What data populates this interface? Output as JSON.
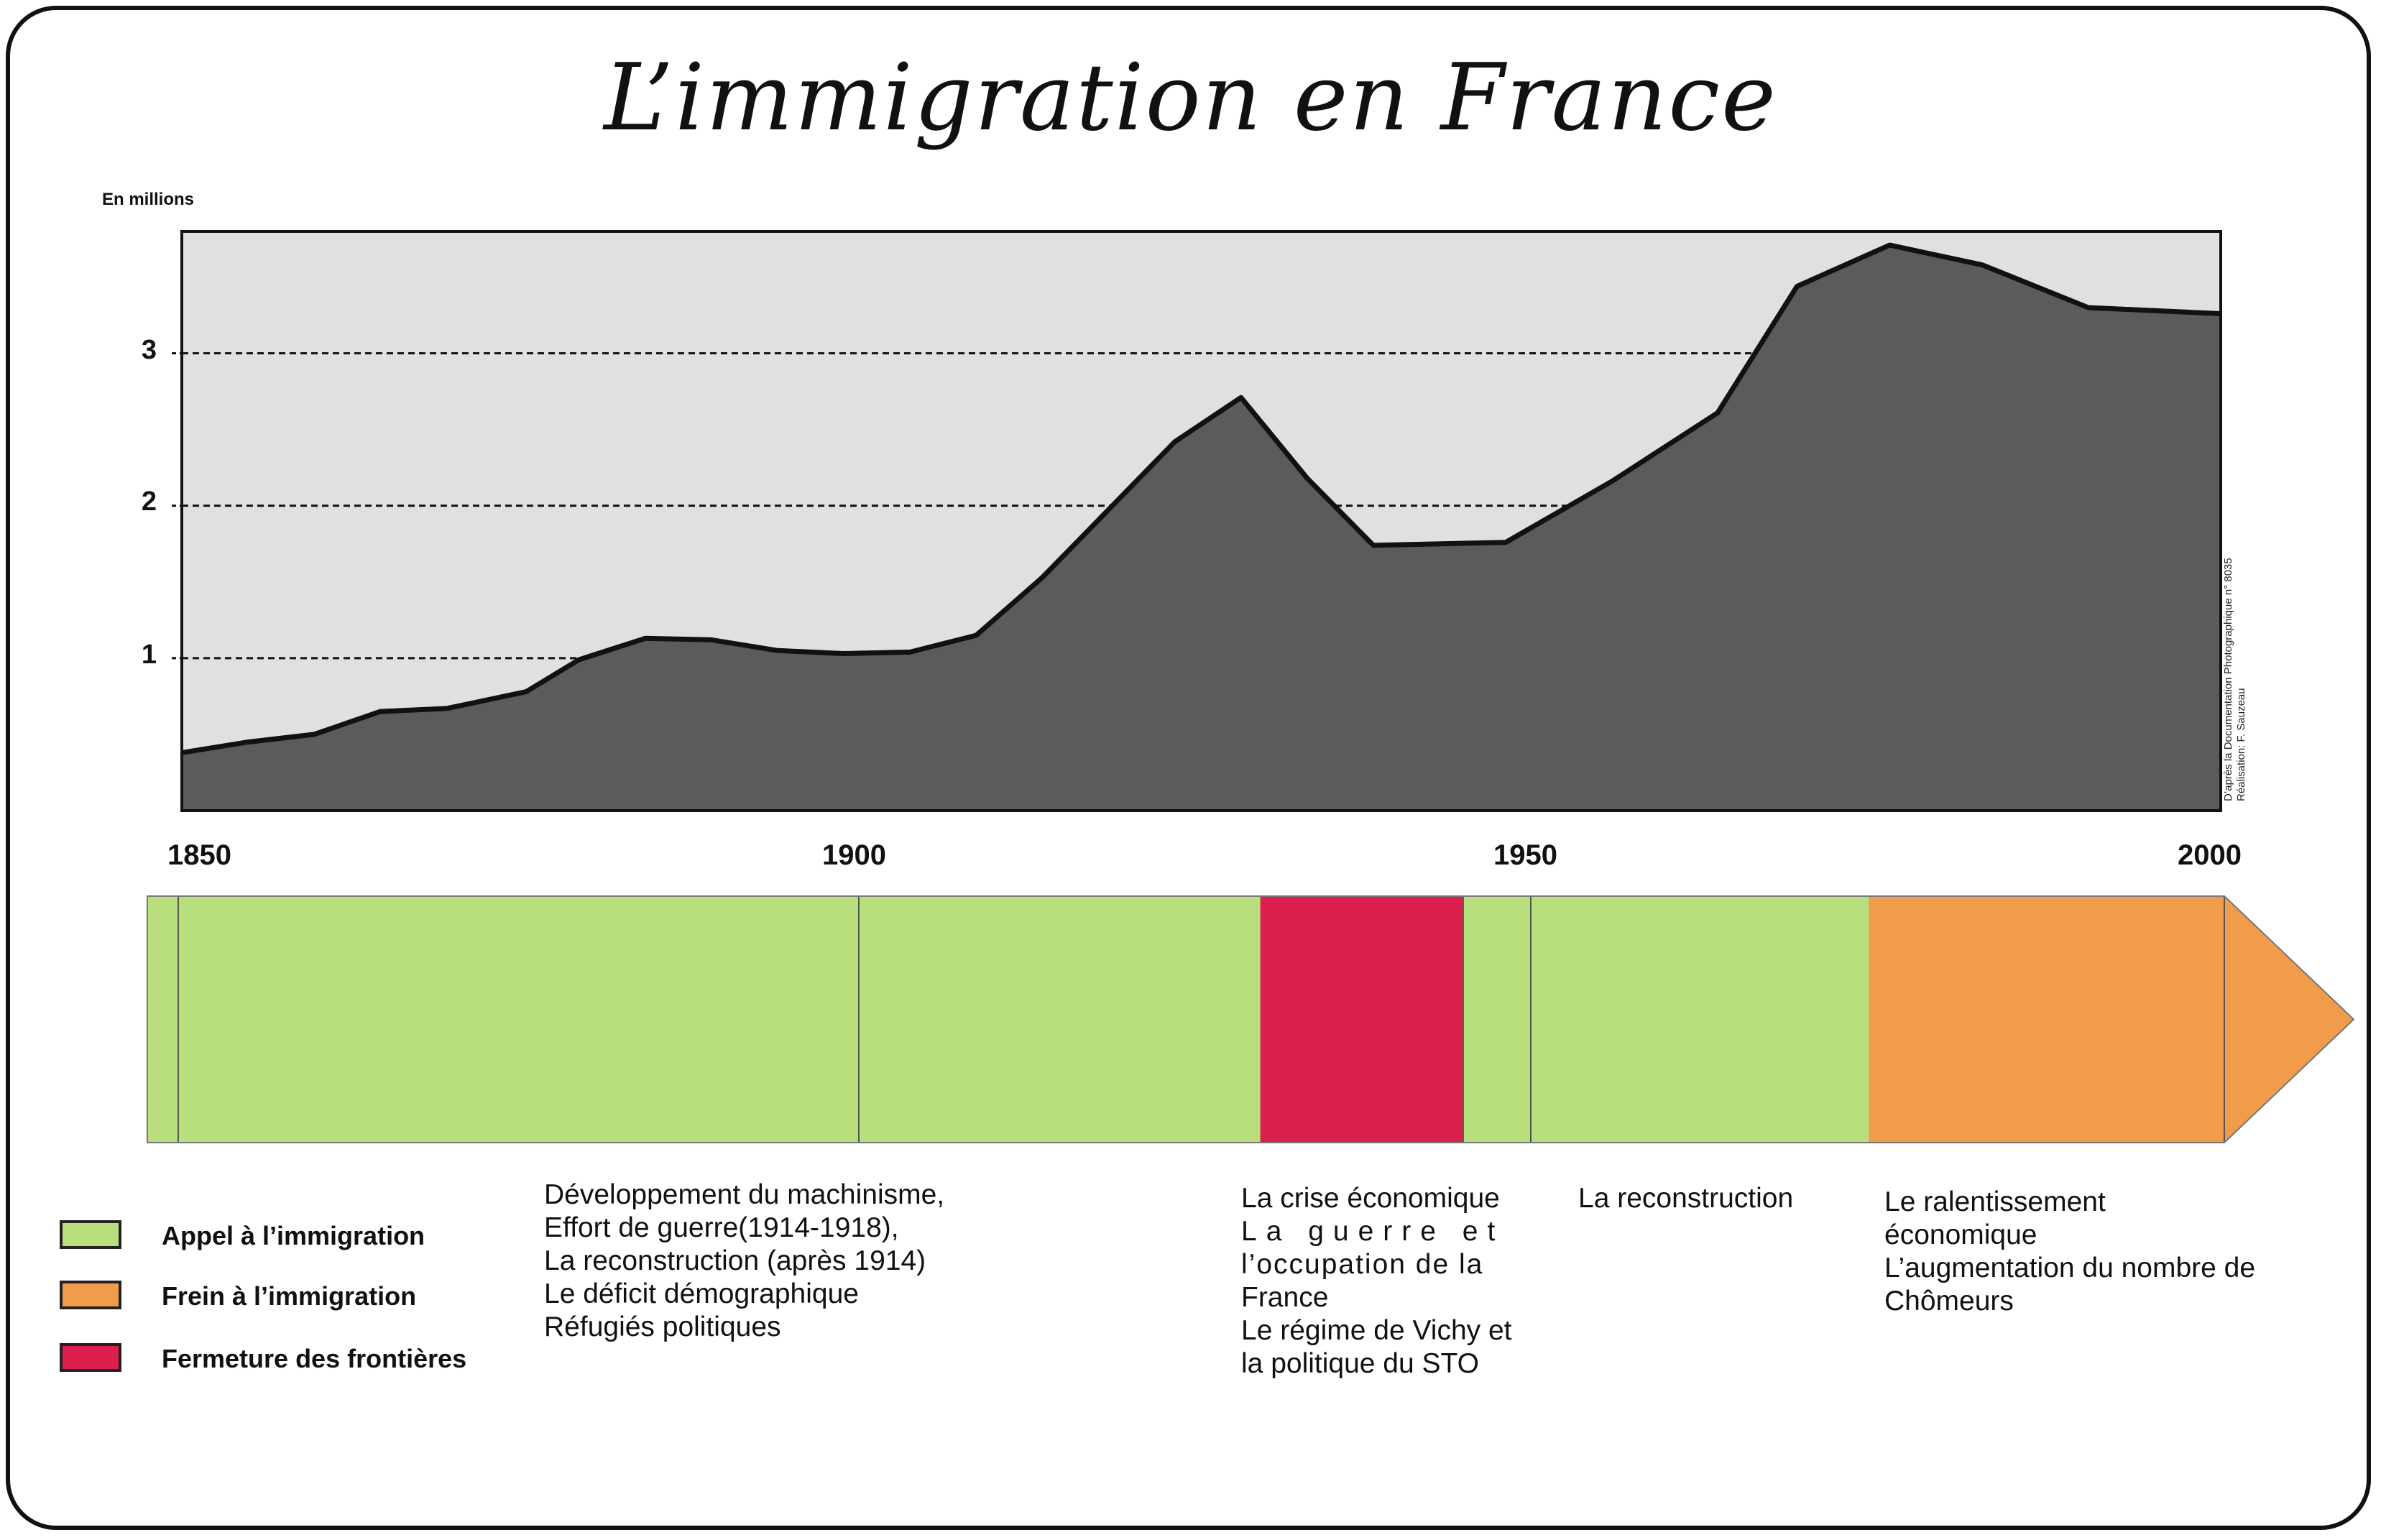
{
  "title": "L’immigration en France",
  "colors": {
    "plot_background": "#e0e0e0",
    "area_fill": "#5d5b5a",
    "appel": "#b8de7e",
    "frein": "#f09c4a",
    "fermeture": "#dc1f4c"
  },
  "chart_data": {
    "type": "area",
    "title": "L’immigration en France",
    "ylabel": "En millions",
    "xlim": [
      1846,
      2000
    ],
    "ylim": [
      0,
      3.8
    ],
    "yticks": [
      "1",
      "2",
      "3"
    ],
    "xticks": [
      "1850",
      "1900",
      "1950",
      "2000"
    ],
    "grid": "dashed horizontal lines at 1, 2, 3",
    "x": [
      1846,
      1851,
      1856,
      1861,
      1866,
      1872,
      1876,
      1881,
      1886,
      1891,
      1896,
      1901,
      1906,
      1911,
      1921,
      1926,
      1931,
      1936,
      1946,
      1954,
      1962,
      1968,
      1975,
      1982,
      1990,
      2000
    ],
    "values": [
      0.38,
      0.45,
      0.5,
      0.65,
      0.67,
      0.78,
      0.99,
      1.13,
      1.12,
      1.05,
      1.03,
      1.04,
      1.15,
      1.53,
      2.42,
      2.71,
      2.18,
      1.74,
      1.76,
      2.16,
      2.61,
      3.44,
      3.71,
      3.58,
      3.3,
      3.26
    ],
    "source": "D’après la Documentation Photographique n° 8035",
    "credit": "Réalisation: F. Sauzeau"
  },
  "timeline": {
    "periods": [
      {
        "label": "Appel à l’immigration",
        "category": "appel",
        "start": 1848,
        "end": 1930
      },
      {
        "label": "Fermeture des frontières",
        "category": "fermeture",
        "start": 1930,
        "end": 1945
      },
      {
        "label": "Appel à l’immigration",
        "category": "appel",
        "start": 1945,
        "end": 1975
      },
      {
        "label": "Frein à l’immigration",
        "category": "frein",
        "start": 1975,
        "end": 2010
      }
    ]
  },
  "legend": [
    {
      "label": "Appel à l’immigration",
      "category": "appel"
    },
    {
      "label": "Frein à l’immigration",
      "category": "frein"
    },
    {
      "label": "Fermeture des frontières",
      "category": "fermeture"
    }
  ],
  "descriptions": {
    "appel1": [
      "Développement du machinisme,",
      "Effort de guerre(1914-1918),",
      "La reconstruction (après 1914)",
      "Le déficit démographique",
      "Réfugiés politiques"
    ],
    "fermeture": [
      "La crise économique",
      "La guerre et",
      "l’occupation de la",
      "France",
      "Le régime de Vichy et",
      "la politique du STO"
    ],
    "appel2": [
      "La reconstruction"
    ],
    "frein": [
      "Le ralentissement",
      "économique",
      "L’augmentation du nombre de",
      "Chômeurs"
    ]
  }
}
